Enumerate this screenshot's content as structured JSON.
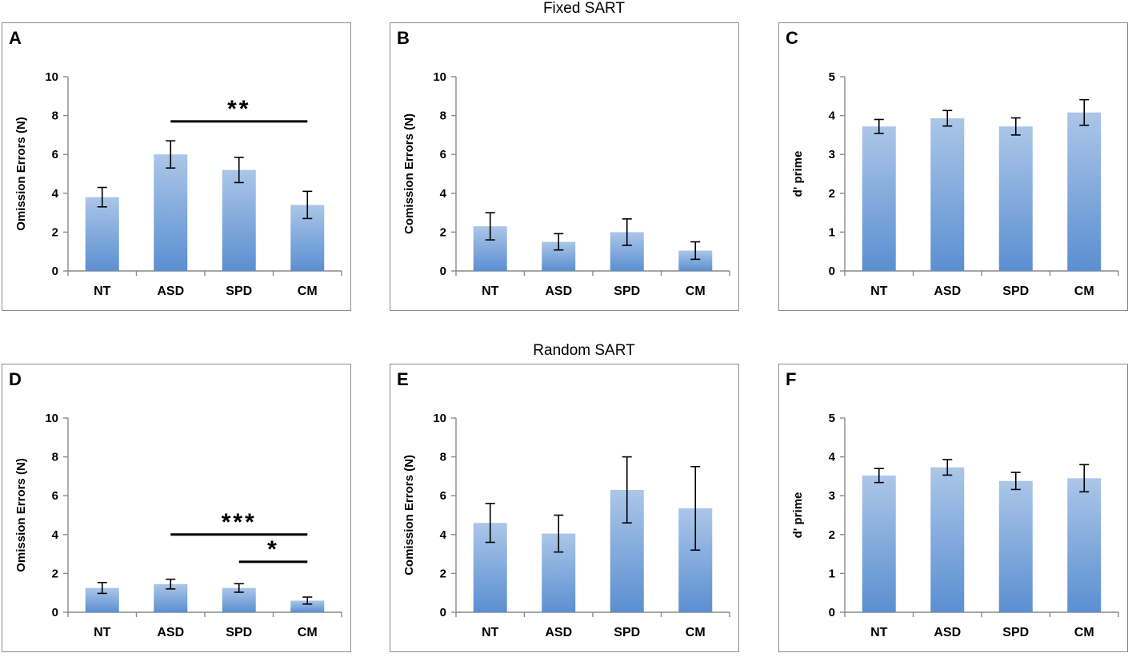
{
  "section_titles": {
    "fixed": "Fixed SART",
    "random": "Random SART"
  },
  "colors": {
    "bar_top": "#abc6e8",
    "bar_bottom": "#5b8fd1",
    "axis": "#8a8a8a",
    "border": "#8c8c8c",
    "text": "#000000"
  },
  "chart_data": [
    {
      "panel": "A",
      "type": "bar",
      "section": "Fixed SART",
      "categories": [
        "NT",
        "ASD",
        "SPD",
        "CM"
      ],
      "values": [
        3.8,
        6.0,
        5.2,
        3.4
      ],
      "errors": [
        0.5,
        0.7,
        0.65,
        0.7
      ],
      "ylabel": "Omission Errors (N)",
      "ylim": [
        0,
        10
      ],
      "yticks": [
        0,
        2,
        4,
        6,
        8,
        10
      ],
      "annotations": [
        {
          "from": 1,
          "to": 3,
          "y": 7.7,
          "label": "**"
        }
      ]
    },
    {
      "panel": "B",
      "type": "bar",
      "section": "Fixed SART",
      "categories": [
        "NT",
        "ASD",
        "SPD",
        "CM"
      ],
      "values": [
        2.3,
        1.5,
        2.0,
        1.05
      ],
      "errors": [
        0.7,
        0.42,
        0.68,
        0.45
      ],
      "ylabel": "Comission Errors (N)",
      "ylim": [
        0,
        10
      ],
      "yticks": [
        0,
        2,
        4,
        6,
        8,
        10
      ],
      "annotations": []
    },
    {
      "panel": "C",
      "type": "bar",
      "section": "Fixed SART",
      "categories": [
        "NT",
        "ASD",
        "SPD",
        "CM"
      ],
      "values": [
        3.72,
        3.93,
        3.72,
        4.08
      ],
      "errors": [
        0.18,
        0.2,
        0.22,
        0.33
      ],
      "ylabel": "d' prime",
      "ylim": [
        0,
        5
      ],
      "yticks": [
        0,
        1,
        2,
        3,
        4,
        5
      ],
      "annotations": []
    },
    {
      "panel": "D",
      "type": "bar",
      "section": "Random SART",
      "categories": [
        "NT",
        "ASD",
        "SPD",
        "CM"
      ],
      "values": [
        1.25,
        1.45,
        1.25,
        0.6
      ],
      "errors": [
        0.28,
        0.25,
        0.22,
        0.18
      ],
      "ylabel": "Omission Errors (N)",
      "ylim": [
        0,
        10
      ],
      "yticks": [
        0,
        2,
        4,
        6,
        8,
        10
      ],
      "annotations": [
        {
          "from": 1,
          "to": 3,
          "y": 4.0,
          "label": "***"
        },
        {
          "from": 2,
          "to": 3,
          "y": 2.6,
          "label": "*"
        }
      ]
    },
    {
      "panel": "E",
      "type": "bar",
      "section": "Random SART",
      "categories": [
        "NT",
        "ASD",
        "SPD",
        "CM"
      ],
      "values": [
        4.6,
        4.05,
        6.3,
        5.35
      ],
      "errors": [
        1.0,
        0.95,
        1.7,
        2.15
      ],
      "ylabel": "Comission Errors (N)",
      "ylim": [
        0,
        10
      ],
      "yticks": [
        0,
        2,
        4,
        6,
        8,
        10
      ],
      "annotations": []
    },
    {
      "panel": "F",
      "type": "bar",
      "section": "Random SART",
      "categories": [
        "NT",
        "ASD",
        "SPD",
        "CM"
      ],
      "values": [
        3.52,
        3.73,
        3.38,
        3.45
      ],
      "errors": [
        0.18,
        0.2,
        0.22,
        0.35
      ],
      "ylabel": "d' prime",
      "ylim": [
        0,
        5
      ],
      "yticks": [
        0,
        1,
        2,
        3,
        4,
        5
      ],
      "annotations": []
    }
  ]
}
